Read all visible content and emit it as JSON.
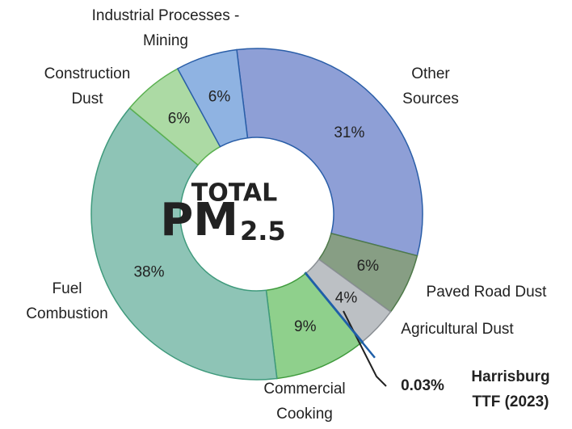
{
  "chart_data": {
    "type": "donut",
    "center_title": "TOTAL",
    "center_label": "PM",
    "center_sub": "2.5",
    "categories": [
      "Other\nSources",
      "Paved Road Dust",
      "Agricultural Dust",
      "Harrisburg\nTTF (2023)",
      "Commercial\nCooking",
      "Fuel\nCombustion",
      "Construction\nDust",
      "Industrial Processes -\nMining"
    ],
    "values": [
      31,
      6,
      4,
      0.03,
      9,
      38,
      6,
      6
    ],
    "value_labels": [
      "31%",
      "6%",
      "4%",
      "0.03%",
      "9%",
      "38%",
      "6%",
      "6%"
    ],
    "colors": [
      "#8e9fd6",
      "#879e84",
      "#bcc0c4",
      "#1f5fa8",
      "#8fd08c",
      "#8ec4b6",
      "#acdaa4",
      "#8fb3e2"
    ]
  }
}
